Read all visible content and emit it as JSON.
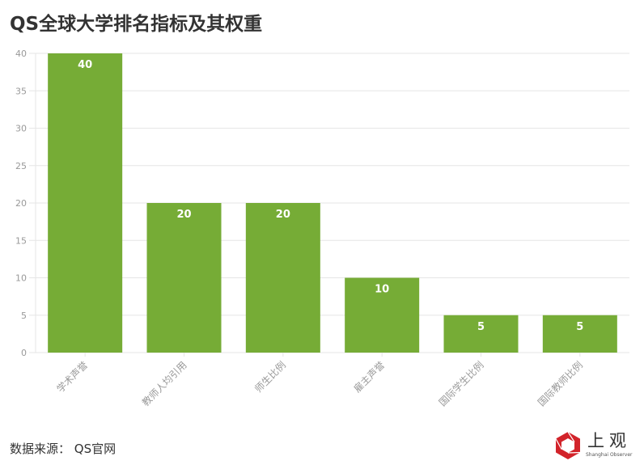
{
  "header": {
    "title": "QS全球大学排名指标及其权重"
  },
  "footer": {
    "source_label": "数据来源：",
    "source_value": "QS官网",
    "logo_text": "上观",
    "logo_subtext": "Shanghai Observer"
  },
  "colors": {
    "bar": "#76ac36",
    "grid": "#e6e6e6",
    "axis_text": "#999999",
    "label_text": "#ffffff",
    "logo_red": "#d2232a"
  },
  "chart_data": {
    "type": "bar",
    "title": "QS全球大学排名指标及其权重",
    "xlabel": "",
    "ylabel": "",
    "categories": [
      "学术声誉",
      "教师人均引用",
      "师生比例",
      "雇主声誉",
      "国际学生比例",
      "国际教师比例"
    ],
    "values": [
      40,
      20,
      20,
      10,
      5,
      5
    ],
    "ylim": [
      0,
      40
    ],
    "yticks": [
      0,
      5,
      10,
      15,
      20,
      25,
      30,
      35,
      40
    ],
    "grid": true,
    "legend": null,
    "data_labels": true
  }
}
